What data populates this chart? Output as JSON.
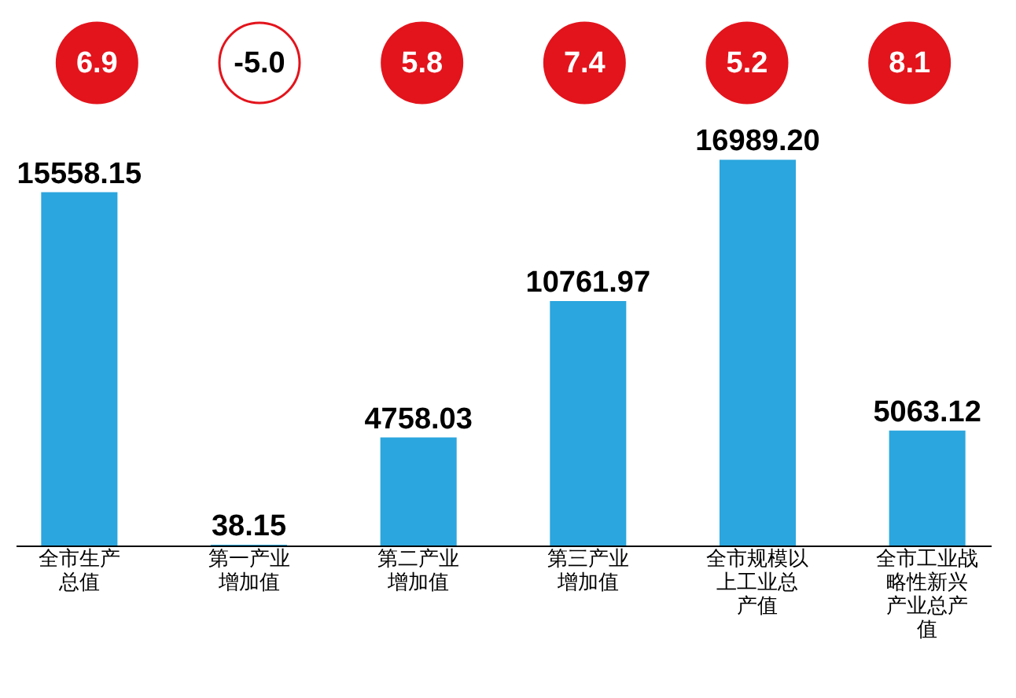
{
  "chart_data": {
    "type": "bar",
    "categories": [
      "全市生产总值",
      "第一产业增加值",
      "第二产业增加值",
      "第三产业增加值",
      "全市规模以上工业总产值",
      "全市工业战略性新兴产业总产值"
    ],
    "values": [
      15558.15,
      38.15,
      4758.03,
      10761.97,
      16989.2,
      5063.12
    ],
    "value_labels": [
      "15558.15",
      "38.15",
      "4758.03",
      "10761.97",
      "16989.20",
      "5063.12"
    ],
    "color": "#2ba6de",
    "grid": false,
    "annotations": [
      "6.9",
      "-5.0",
      "5.8",
      "7.4",
      "5.2",
      "8.1"
    ]
  }
}
